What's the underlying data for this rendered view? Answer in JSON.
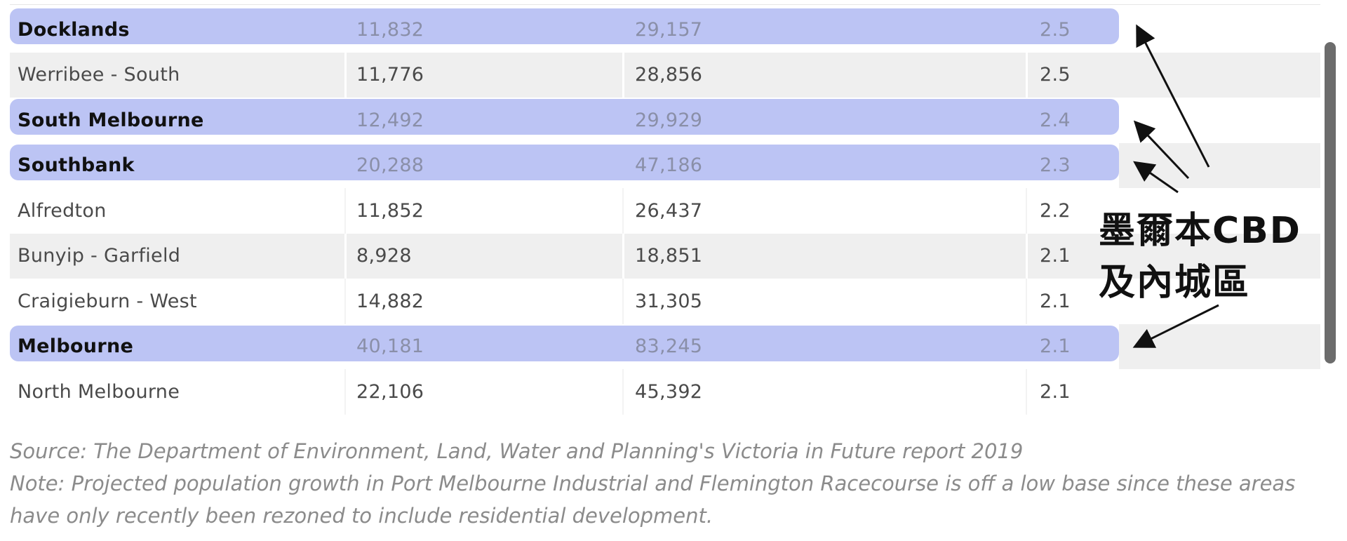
{
  "table": {
    "rows": [
      {
        "suburb": "Docklands",
        "c1": "11,832",
        "c2": "29,157",
        "c3": "2.5",
        "highlight": true,
        "shaded": false
      },
      {
        "suburb": "Werribee - South",
        "c1": "11,776",
        "c2": "28,856",
        "c3": "2.5",
        "highlight": false,
        "shaded": true
      },
      {
        "suburb": "South Melbourne",
        "c1": "12,492",
        "c2": "29,929",
        "c3": "2.4",
        "highlight": true,
        "shaded": false
      },
      {
        "suburb": "Southbank",
        "c1": "20,288",
        "c2": "47,186",
        "c3": "2.3",
        "highlight": true,
        "shaded": true
      },
      {
        "suburb": "Alfredton",
        "c1": "11,852",
        "c2": "26,437",
        "c3": "2.2",
        "highlight": false,
        "shaded": false
      },
      {
        "suburb": "Bunyip - Garfield",
        "c1": "8,928",
        "c2": "18,851",
        "c3": "2.1",
        "highlight": false,
        "shaded": true
      },
      {
        "suburb": "Craigieburn - West",
        "c1": "14,882",
        "c2": "31,305",
        "c3": "2.1",
        "highlight": false,
        "shaded": false
      },
      {
        "suburb": "Melbourne",
        "c1": "40,181",
        "c2": "83,245",
        "c3": "2.1",
        "highlight": true,
        "shaded": true
      },
      {
        "suburb": "North Melbourne",
        "c1": "22,106",
        "c2": "45,392",
        "c3": "2.1",
        "highlight": false,
        "shaded": false
      }
    ]
  },
  "annotation": {
    "line1": "墨爾本CBD",
    "line2": "及內城區"
  },
  "notes": {
    "source": "Source: The Department of Environment, Land, Water and Planning's Victoria in Future report 2019",
    "note_line1": "Note: Projected population growth in Port Melbourne Industrial and Flemington Racecourse is off a low base since these areas",
    "note_line2": "have only recently been rezoned to include residential development."
  },
  "colors": {
    "highlight": "#bcc4f4",
    "shaded_row": "#efefef",
    "note_text": "#8b8b8b"
  }
}
